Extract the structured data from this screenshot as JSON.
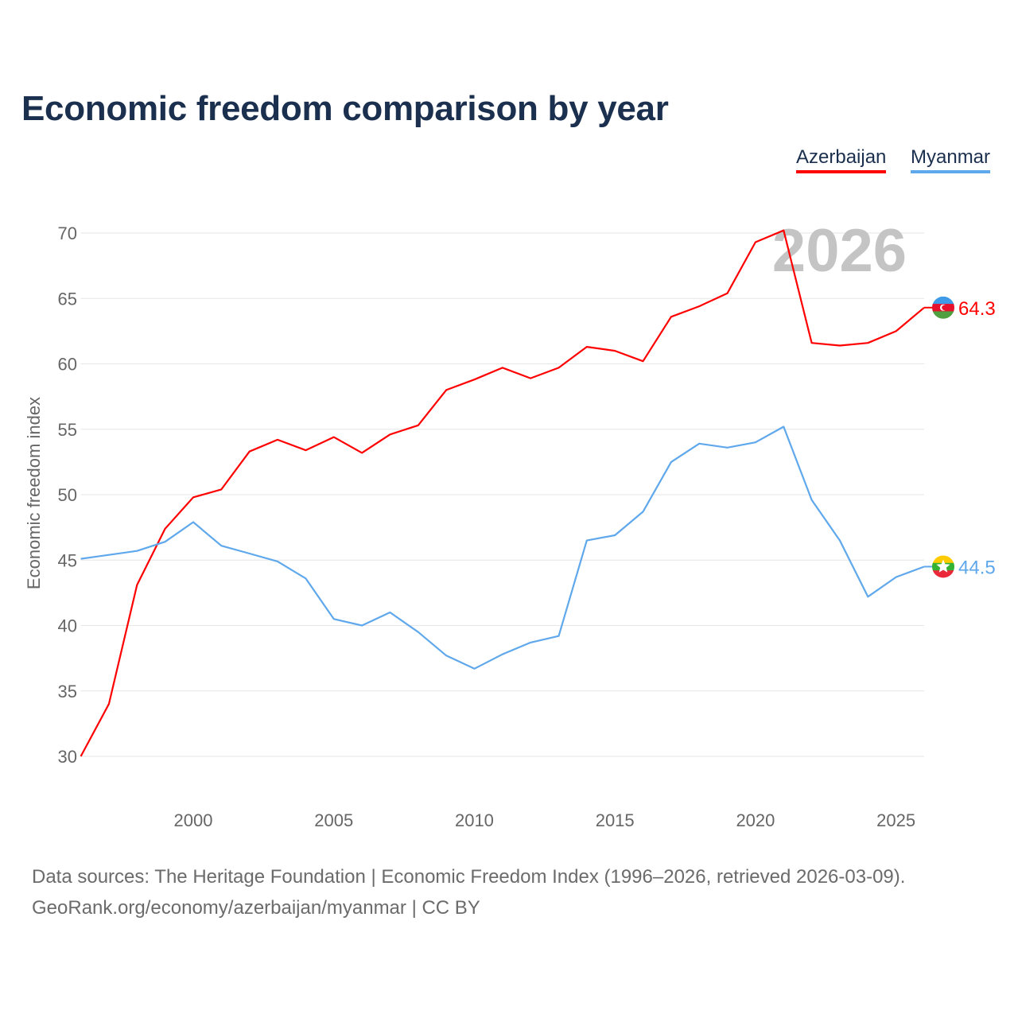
{
  "title": "Economic freedom comparison by year",
  "legend": [
    {
      "label": "Azerbaijan",
      "color": "#ff0000"
    },
    {
      "label": "Myanmar",
      "color": "#5fa8ec"
    }
  ],
  "sources_line1": "Data sources: The Heritage Foundation | Economic Freedom Index (1996–2026, retrieved 2026-03-09).",
  "sources_line2": "GeoRank.org/economy/azerbaijan/myanmar | CC BY",
  "chart_data": {
    "type": "line",
    "title": "Economic freedom comparison by year",
    "xlabel": "",
    "ylabel": "Economic freedom index",
    "watermark_year": "2026",
    "xlim": [
      1996,
      2026
    ],
    "ylim": [
      27,
      72
    ],
    "x_ticks": [
      2000,
      2005,
      2010,
      2015,
      2020,
      2025
    ],
    "y_ticks": [
      30,
      35,
      40,
      45,
      50,
      55,
      60,
      65,
      70
    ],
    "grid": true,
    "legend_position": "top-right",
    "x": [
      1996,
      1997,
      1998,
      1999,
      2000,
      2001,
      2002,
      2003,
      2004,
      2005,
      2006,
      2007,
      2008,
      2009,
      2010,
      2011,
      2012,
      2013,
      2014,
      2015,
      2016,
      2017,
      2018,
      2019,
      2020,
      2021,
      2022,
      2023,
      2024,
      2025,
      2026
    ],
    "series": [
      {
        "name": "Azerbaijan",
        "color": "#ff0000",
        "end_label": "64.3",
        "flag": "azerbaijan-flag",
        "values": [
          30.0,
          34.0,
          43.1,
          47.4,
          49.8,
          50.4,
          53.3,
          54.2,
          53.4,
          54.4,
          53.2,
          54.6,
          55.3,
          58.0,
          58.8,
          59.7,
          58.9,
          59.7,
          61.3,
          61.0,
          60.2,
          63.6,
          64.4,
          65.4,
          69.3,
          70.2,
          61.6,
          61.4,
          61.6,
          62.5,
          64.3
        ]
      },
      {
        "name": "Myanmar",
        "color": "#5fa8ec",
        "end_label": "44.5",
        "flag": "myanmar-flag",
        "values": [
          45.1,
          45.4,
          45.7,
          46.4,
          47.9,
          46.1,
          45.5,
          44.9,
          43.6,
          40.5,
          40.0,
          41.0,
          39.5,
          37.7,
          36.7,
          37.8,
          38.7,
          39.2,
          46.5,
          46.9,
          48.7,
          52.5,
          53.9,
          53.6,
          54.0,
          55.2,
          49.6,
          46.5,
          42.2,
          43.7,
          44.5
        ]
      }
    ]
  }
}
